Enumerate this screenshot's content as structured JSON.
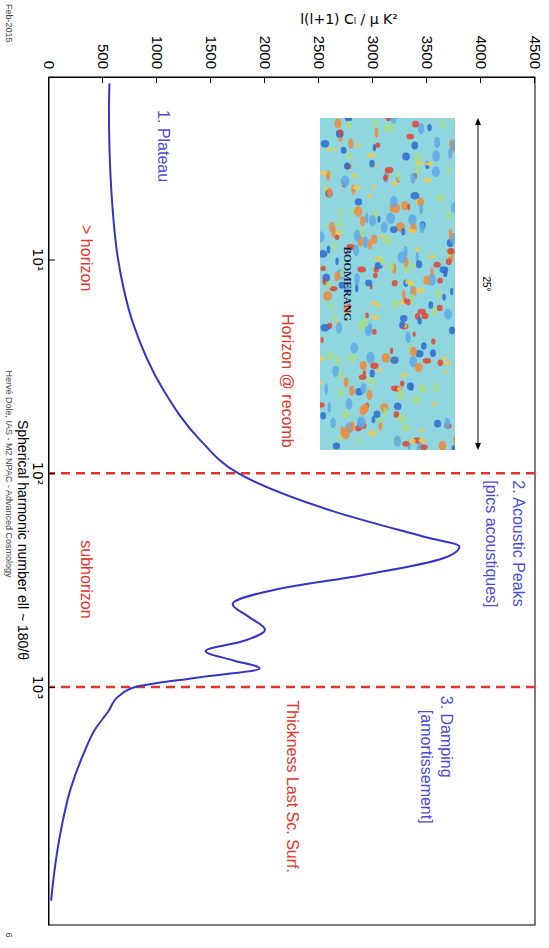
{
  "chart_data": {
    "type": "line",
    "xlabel": "Spherical harmonic number ell ~ 180/θ",
    "ylabel": "l(l+1) Cₗ / μ K²",
    "log": "x",
    "xlim": [
      1.4,
      13000
    ],
    "ylim": [
      0,
      4500
    ],
    "xticks": [
      {
        "value": 10,
        "label": "10¹"
      },
      {
        "value": 100,
        "label": "10²"
      },
      {
        "value": 1000,
        "label": "10³"
      }
    ],
    "yticks": [
      0,
      500,
      1000,
      1500,
      2000,
      2500,
      3000,
      3500,
      4000,
      4500
    ],
    "color": "#3434c8",
    "x": [
      1.5,
      2,
      3,
      5,
      10,
      20,
      40,
      70,
      100,
      150,
      200,
      220,
      250,
      300,
      350,
      410,
      470,
      540,
      610,
      680,
      750,
      820,
      900,
      1000,
      1100,
      1300,
      1600,
      2000,
      3000,
      5000,
      8000,
      10000
    ],
    "values": [
      560,
      555,
      560,
      580,
      640,
      780,
      1050,
      1400,
      1750,
      2620,
      3500,
      3800,
      3650,
      2900,
      2100,
      1700,
      1850,
      2000,
      1800,
      1450,
      1700,
      1950,
      1400,
      800,
      650,
      550,
      420,
      330,
      200,
      100,
      40,
      20
    ],
    "vlines": [
      {
        "x": 100,
        "color": "#e5352a",
        "line_style": "dashed"
      },
      {
        "x": 1000,
        "color": "#e5352a",
        "line_style": "dashed"
      }
    ],
    "annotations": [
      {
        "text": "1. Plateau",
        "x": 2,
        "y": 1010,
        "color": "#4b4bd8"
      },
      {
        "text": "> horizon",
        "x": 6.9,
        "y": 300,
        "color": "#e5352a"
      },
      {
        "text": "Horizon @ recomb",
        "x": 18,
        "y": 2160,
        "color": "#e5352a"
      },
      {
        "text": "2. Acoustic Peaks",
        "x": 108,
        "y": 4300,
        "color": "#4b4bd8"
      },
      {
        "text": "[pics acoustiques]",
        "x": 108,
        "y": 4050,
        "color": "#4b4bd8"
      },
      {
        "text": "subhorizon",
        "x": 206,
        "y": 300,
        "color": "#e5352a"
      },
      {
        "text": "Thickness Last Sc. Surf.",
        "x": 1157,
        "y": 2200,
        "color": "#e5352a"
      },
      {
        "text": "3. Damping",
        "x": 1100,
        "y": 3630,
        "color": "#4b4bd8"
      },
      {
        "text": "[amortissement]",
        "x": 1280,
        "y": 3440,
        "color": "#4b4bd8"
      }
    ],
    "inset": {
      "title": "BOOMERANG",
      "scale_label": "25°"
    },
    "footer": {
      "date": "Feb-2015",
      "credit": "Hervé Dole, IAS - M2 NPAC - Advanced Cosmology",
      "page": 6
    }
  }
}
